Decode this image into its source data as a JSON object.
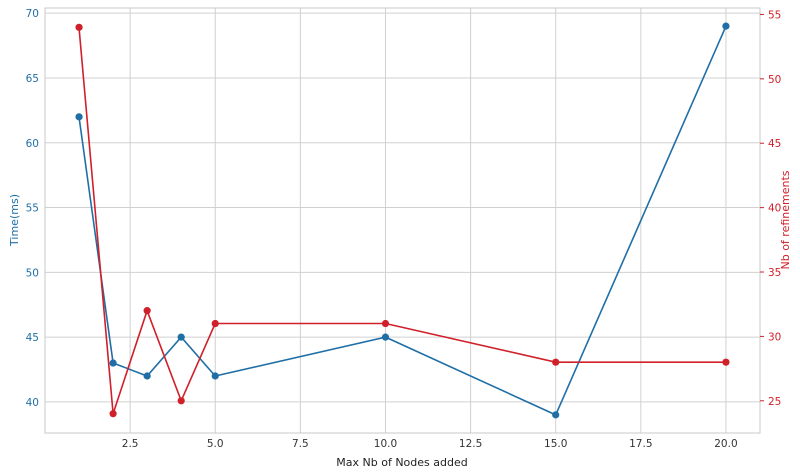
{
  "chart_data": {
    "type": "line",
    "xlabel": "Max Nb of Nodes added",
    "x": [
      1,
      2,
      3,
      4,
      5,
      10,
      15,
      20
    ],
    "xlim": [
      0.0,
      21.0
    ],
    "xticks": [
      2.5,
      5.0,
      7.5,
      10.0,
      12.5,
      15.0,
      17.5,
      20.0
    ],
    "xtick_labels": [
      "2.5",
      "5.0",
      "7.5",
      "10.0",
      "12.5",
      "15.0",
      "17.5",
      "20.0"
    ],
    "grid": true,
    "legend": "none",
    "y_left": {
      "label": "Time(ms)",
      "lim": [
        37.6,
        70.4
      ],
      "ticks": [
        40,
        45,
        50,
        55,
        60,
        65,
        70
      ],
      "color": "#1f6fa6"
    },
    "y_right": {
      "label": "Nb of refinements",
      "lim": [
        22.5,
        55.5
      ],
      "ticks": [
        25,
        30,
        35,
        40,
        45,
        50,
        55
      ],
      "color": "#d0202a"
    },
    "series": [
      {
        "axis": "left",
        "color": "#1f6fa6",
        "values": [
          62,
          43,
          42,
          45,
          42,
          45,
          39,
          69
        ]
      },
      {
        "axis": "right",
        "color": "#d0202a",
        "values": [
          54,
          24,
          32,
          25,
          31,
          31,
          28,
          28
        ]
      }
    ]
  }
}
